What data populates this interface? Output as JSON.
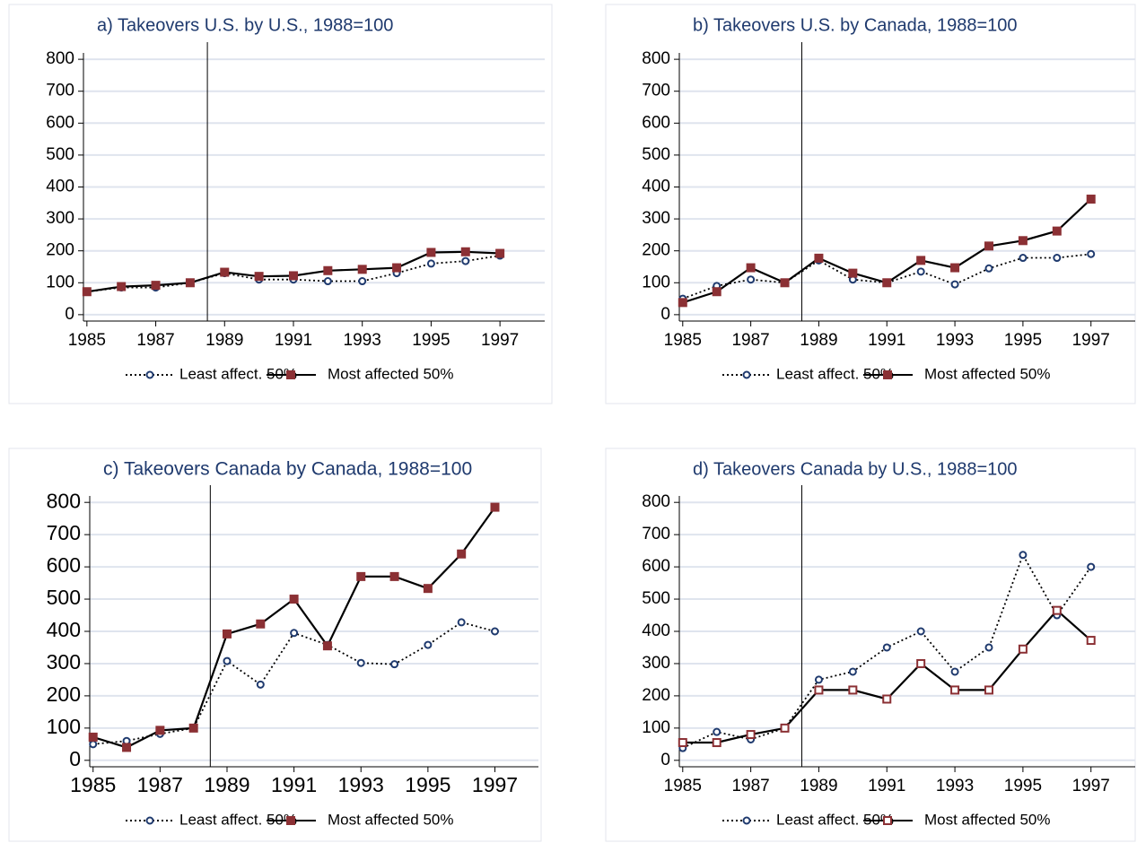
{
  "chart_data": [
    {
      "type": "line",
      "title": "a) Takeovers U.S. by U.S., 1988=100",
      "x": [
        1985,
        1986,
        1987,
        1988,
        1989,
        1990,
        1991,
        1992,
        1993,
        1994,
        1995,
        1996,
        1997
      ],
      "series": [
        {
          "name": "Least affect. 50%",
          "color": "#1f3a6e",
          "line": "dotted",
          "marker": "hollow-circle",
          "values": [
            72,
            85,
            85,
            100,
            130,
            110,
            110,
            105,
            105,
            130,
            160,
            168,
            185
          ]
        },
        {
          "name": "Most affected 50%",
          "color": "#8b3034",
          "line": "solid",
          "marker": "square",
          "values": [
            72,
            88,
            92,
            100,
            133,
            120,
            122,
            138,
            142,
            147,
            195,
            197,
            192
          ]
        }
      ],
      "xlim": [
        1984.9,
        1998.3
      ],
      "ylim": [
        -20,
        820
      ],
      "xticks": [
        1985,
        1987,
        1989,
        1991,
        1993,
        1995,
        1997
      ],
      "yticks": [
        0,
        100,
        200,
        300,
        400,
        500,
        600,
        700,
        800
      ],
      "grid": true,
      "vline": 1988.5
    },
    {
      "type": "line",
      "title": "b) Takeovers U.S. by Canada, 1988=100",
      "x": [
        1985,
        1986,
        1987,
        1988,
        1989,
        1990,
        1991,
        1992,
        1993,
        1994,
        1995,
        1996,
        1997
      ],
      "series": [
        {
          "name": "Least affect. 50%",
          "color": "#1f3a6e",
          "line": "dotted",
          "marker": "hollow-circle",
          "values": [
            50,
            90,
            110,
            100,
            170,
            110,
            100,
            135,
            95,
            145,
            178,
            178,
            190
          ]
        },
        {
          "name": "Most affected 50%",
          "color": "#8b3034",
          "line": "solid",
          "marker": "square",
          "values": [
            38,
            72,
            147,
            100,
            177,
            130,
            100,
            170,
            147,
            215,
            232,
            262,
            362
          ]
        }
      ],
      "xlim": [
        1984.9,
        1998.3
      ],
      "ylim": [
        -20,
        820
      ],
      "xticks": [
        1985,
        1987,
        1989,
        1991,
        1993,
        1995,
        1997
      ],
      "yticks": [
        0,
        100,
        200,
        300,
        400,
        500,
        600,
        700,
        800
      ],
      "grid": true,
      "vline": 1988.5
    },
    {
      "type": "line",
      "title": "c) Takeovers Canada by Canada, 1988=100",
      "x": [
        1985,
        1986,
        1987,
        1988,
        1989,
        1990,
        1991,
        1992,
        1993,
        1994,
        1995,
        1996,
        1997
      ],
      "series": [
        {
          "name": "Least affect. 50%",
          "color": "#1f3a6e",
          "line": "dotted",
          "marker": "hollow-circle",
          "values": [
            50,
            60,
            82,
            100,
            308,
            235,
            395,
            358,
            302,
            298,
            358,
            428,
            400
          ]
        },
        {
          "name": "Most affected 50%",
          "color": "#8b3034",
          "line": "solid",
          "marker": "square",
          "values": [
            72,
            40,
            93,
            100,
            392,
            423,
            500,
            355,
            570,
            570,
            533,
            640,
            785
          ]
        }
      ],
      "xlim": [
        1984.9,
        1998.3
      ],
      "ylim": [
        -20,
        820
      ],
      "xticks": [
        1985,
        1987,
        1989,
        1991,
        1993,
        1995,
        1997
      ],
      "yticks": [
        0,
        100,
        200,
        300,
        400,
        500,
        600,
        700,
        800
      ],
      "grid": true,
      "vline": 1988.5
    },
    {
      "type": "line",
      "title": "d) Takeovers Canada by U.S., 1988=100",
      "x": [
        1985,
        1986,
        1987,
        1988,
        1989,
        1990,
        1991,
        1992,
        1993,
        1994,
        1995,
        1996,
        1997
      ],
      "series": [
        {
          "name": "Least affect. 50%",
          "color": "#1f3a6e",
          "line": "dotted",
          "marker": "hollow-circle",
          "values": [
            38,
            88,
            65,
            100,
            250,
            275,
            350,
            400,
            275,
            350,
            637,
            450,
            600
          ]
        },
        {
          "name": "Most affected 50%",
          "color": "#8b3034",
          "line": "solid",
          "marker": "hollow-square",
          "values": [
            55,
            55,
            80,
            100,
            218,
            218,
            190,
            300,
            218,
            218,
            345,
            465,
            372
          ]
        }
      ],
      "xlim": [
        1984.9,
        1998.3
      ],
      "ylim": [
        -20,
        820
      ],
      "xticks": [
        1985,
        1987,
        1989,
        1991,
        1993,
        1995,
        1997
      ],
      "yticks": [
        0,
        100,
        200,
        300,
        400,
        500,
        600,
        700,
        800
      ],
      "grid": true,
      "vline": 1988.5
    }
  ]
}
